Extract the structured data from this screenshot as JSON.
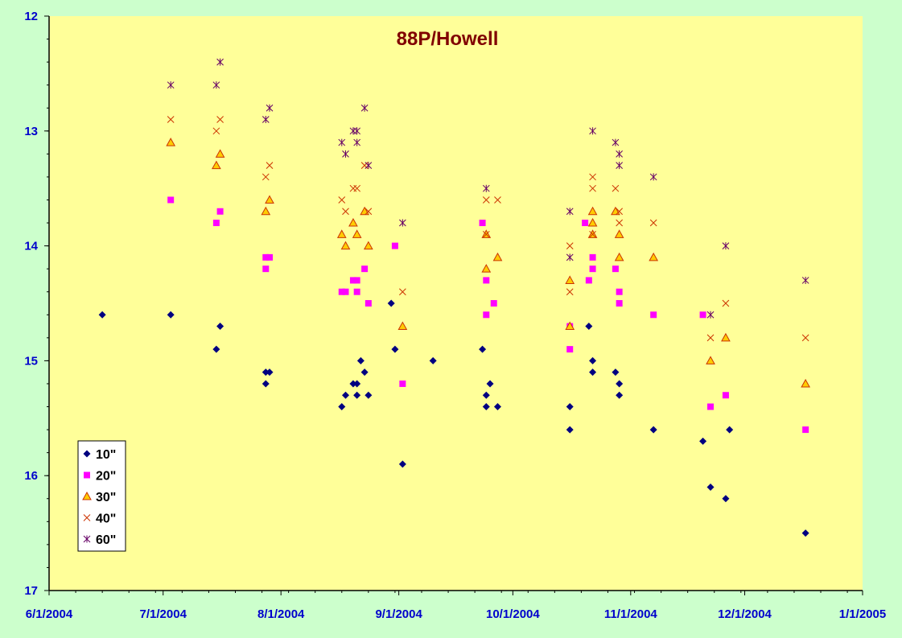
{
  "chart_data": {
    "type": "scatter",
    "title": "88P/Howell",
    "xlabel": "",
    "ylabel": "",
    "x_axis": {
      "type": "date",
      "range": [
        "2004-06-01",
        "2005-01-01"
      ],
      "ticks": [
        "2004-06-01",
        "2004-07-01",
        "2004-08-01",
        "2004-09-01",
        "2004-10-01",
        "2004-11-01",
        "2004-12-01",
        "2005-01-01"
      ],
      "tick_labels": [
        "6/1/2004",
        "7/1/2004",
        "8/1/2004",
        "9/1/2004",
        "10/1/2004",
        "11/1/2004",
        "12/1/2004",
        "1/1/2005"
      ]
    },
    "y_axis": {
      "range": [
        12,
        17
      ],
      "reversed": true,
      "ticks": [
        12,
        13,
        14,
        15,
        16,
        17
      ],
      "tick_labels": [
        "12",
        "13",
        "14",
        "15",
        "16",
        "17"
      ]
    },
    "grid": false,
    "legend_position": "bottom-left",
    "series": [
      {
        "name": "10\"",
        "marker": "diamond",
        "color": "#000080",
        "points": [
          [
            "2004-06-15",
            14.6
          ],
          [
            "2004-07-03",
            14.6
          ],
          [
            "2004-07-15",
            14.9
          ],
          [
            "2004-07-16",
            14.7
          ],
          [
            "2004-07-28",
            15.2
          ],
          [
            "2004-07-28",
            15.1
          ],
          [
            "2004-07-29",
            15.1
          ],
          [
            "2004-08-17",
            15.4
          ],
          [
            "2004-08-18",
            15.3
          ],
          [
            "2004-08-20",
            15.2
          ],
          [
            "2004-08-21",
            15.2
          ],
          [
            "2004-08-21",
            15.3
          ],
          [
            "2004-08-22",
            15.0
          ],
          [
            "2004-08-23",
            15.1
          ],
          [
            "2004-08-24",
            15.3
          ],
          [
            "2004-08-30",
            14.5
          ],
          [
            "2004-08-31",
            14.9
          ],
          [
            "2004-09-02",
            15.9
          ],
          [
            "2004-09-10",
            15.0
          ],
          [
            "2004-09-23",
            14.9
          ],
          [
            "2004-09-24",
            15.3
          ],
          [
            "2004-09-24",
            15.4
          ],
          [
            "2004-09-25",
            15.2
          ],
          [
            "2004-09-27",
            15.4
          ],
          [
            "2004-10-16",
            15.4
          ],
          [
            "2004-10-16",
            15.6
          ],
          [
            "2004-10-21",
            14.7
          ],
          [
            "2004-10-22",
            15.0
          ],
          [
            "2004-10-22",
            15.1
          ],
          [
            "2004-10-28",
            15.1
          ],
          [
            "2004-10-29",
            15.3
          ],
          [
            "2004-10-29",
            15.2
          ],
          [
            "2004-11-07",
            15.6
          ],
          [
            "2004-11-20",
            15.7
          ],
          [
            "2004-11-22",
            16.1
          ],
          [
            "2004-11-26",
            16.2
          ],
          [
            "2004-11-27",
            15.6
          ],
          [
            "2004-12-17",
            16.5
          ]
        ]
      },
      {
        "name": "20\"",
        "marker": "square",
        "color": "#ff00ff",
        "points": [
          [
            "2004-07-03",
            13.6
          ],
          [
            "2004-07-15",
            13.8
          ],
          [
            "2004-07-16",
            13.7
          ],
          [
            "2004-07-28",
            14.1
          ],
          [
            "2004-07-28",
            14.2
          ],
          [
            "2004-07-29",
            14.1
          ],
          [
            "2004-08-17",
            14.4
          ],
          [
            "2004-08-18",
            14.4
          ],
          [
            "2004-08-20",
            14.3
          ],
          [
            "2004-08-21",
            14.4
          ],
          [
            "2004-08-21",
            14.3
          ],
          [
            "2004-08-23",
            14.2
          ],
          [
            "2004-08-24",
            14.5
          ],
          [
            "2004-08-31",
            14.0
          ],
          [
            "2004-09-02",
            15.2
          ],
          [
            "2004-09-23",
            13.8
          ],
          [
            "2004-09-24",
            14.3
          ],
          [
            "2004-09-24",
            14.6
          ],
          [
            "2004-09-26",
            14.5
          ],
          [
            "2004-10-16",
            14.7
          ],
          [
            "2004-10-16",
            14.9
          ],
          [
            "2004-10-20",
            13.8
          ],
          [
            "2004-10-21",
            14.3
          ],
          [
            "2004-10-22",
            14.1
          ],
          [
            "2004-10-22",
            14.2
          ],
          [
            "2004-10-28",
            14.2
          ],
          [
            "2004-10-29",
            14.4
          ],
          [
            "2004-10-29",
            14.5
          ],
          [
            "2004-11-07",
            14.6
          ],
          [
            "2004-11-20",
            14.6
          ],
          [
            "2004-11-22",
            15.4
          ],
          [
            "2004-11-26",
            15.3
          ],
          [
            "2004-12-17",
            15.6
          ]
        ]
      },
      {
        "name": "30\"",
        "marker": "triangle",
        "color": "#ffcc00",
        "points": [
          [
            "2004-07-03",
            13.1
          ],
          [
            "2004-07-15",
            13.3
          ],
          [
            "2004-07-16",
            13.2
          ],
          [
            "2004-07-28",
            13.7
          ],
          [
            "2004-07-29",
            13.6
          ],
          [
            "2004-08-17",
            13.9
          ],
          [
            "2004-08-18",
            14.0
          ],
          [
            "2004-08-20",
            13.8
          ],
          [
            "2004-08-21",
            13.9
          ],
          [
            "2004-08-23",
            13.7
          ],
          [
            "2004-08-24",
            14.0
          ],
          [
            "2004-09-02",
            14.7
          ],
          [
            "2004-09-24",
            13.9
          ],
          [
            "2004-09-24",
            14.2
          ],
          [
            "2004-09-27",
            14.1
          ],
          [
            "2004-10-16",
            14.3
          ],
          [
            "2004-10-16",
            14.7
          ],
          [
            "2004-10-22",
            13.7
          ],
          [
            "2004-10-22",
            13.8
          ],
          [
            "2004-10-22",
            13.9
          ],
          [
            "2004-10-28",
            13.7
          ],
          [
            "2004-10-29",
            14.1
          ],
          [
            "2004-10-29",
            13.9
          ],
          [
            "2004-11-07",
            14.1
          ],
          [
            "2004-11-22",
            15.0
          ],
          [
            "2004-11-26",
            14.8
          ],
          [
            "2004-12-17",
            15.2
          ]
        ]
      },
      {
        "name": "40\"",
        "marker": "x",
        "color": "#cc3300",
        "points": [
          [
            "2004-07-03",
            12.9
          ],
          [
            "2004-07-15",
            13.0
          ],
          [
            "2004-07-16",
            12.9
          ],
          [
            "2004-07-28",
            13.4
          ],
          [
            "2004-07-29",
            13.3
          ],
          [
            "2004-08-17",
            13.6
          ],
          [
            "2004-08-18",
            13.7
          ],
          [
            "2004-08-20",
            13.5
          ],
          [
            "2004-08-21",
            13.5
          ],
          [
            "2004-08-23",
            13.3
          ],
          [
            "2004-08-24",
            13.7
          ],
          [
            "2004-09-02",
            14.4
          ],
          [
            "2004-09-24",
            13.6
          ],
          [
            "2004-09-24",
            13.9
          ],
          [
            "2004-09-27",
            13.6
          ],
          [
            "2004-10-16",
            14.0
          ],
          [
            "2004-10-16",
            14.4
          ],
          [
            "2004-10-22",
            13.4
          ],
          [
            "2004-10-22",
            13.5
          ],
          [
            "2004-10-22",
            13.9
          ],
          [
            "2004-10-28",
            13.5
          ],
          [
            "2004-10-29",
            13.7
          ],
          [
            "2004-10-29",
            13.8
          ],
          [
            "2004-11-07",
            13.8
          ],
          [
            "2004-11-22",
            14.8
          ],
          [
            "2004-11-26",
            14.5
          ],
          [
            "2004-12-17",
            14.8
          ]
        ]
      },
      {
        "name": "60\"",
        "marker": "star",
        "color": "#660066",
        "points": [
          [
            "2004-07-03",
            12.6
          ],
          [
            "2004-07-15",
            12.6
          ],
          [
            "2004-07-16",
            12.4
          ],
          [
            "2004-07-28",
            12.9
          ],
          [
            "2004-07-29",
            12.8
          ],
          [
            "2004-08-17",
            13.1
          ],
          [
            "2004-08-18",
            13.2
          ],
          [
            "2004-08-20",
            13.0
          ],
          [
            "2004-08-21",
            13.0
          ],
          [
            "2004-08-21",
            13.1
          ],
          [
            "2004-08-23",
            12.8
          ],
          [
            "2004-08-24",
            13.3
          ],
          [
            "2004-09-02",
            13.8
          ],
          [
            "2004-09-24",
            13.5
          ],
          [
            "2004-10-16",
            13.7
          ],
          [
            "2004-10-16",
            14.1
          ],
          [
            "2004-10-22",
            13.0
          ],
          [
            "2004-10-28",
            13.1
          ],
          [
            "2004-10-29",
            13.2
          ],
          [
            "2004-10-29",
            13.3
          ],
          [
            "2004-11-07",
            13.4
          ],
          [
            "2004-11-22",
            14.6
          ],
          [
            "2004-11-26",
            14.0
          ],
          [
            "2004-12-17",
            14.3
          ]
        ]
      }
    ]
  }
}
